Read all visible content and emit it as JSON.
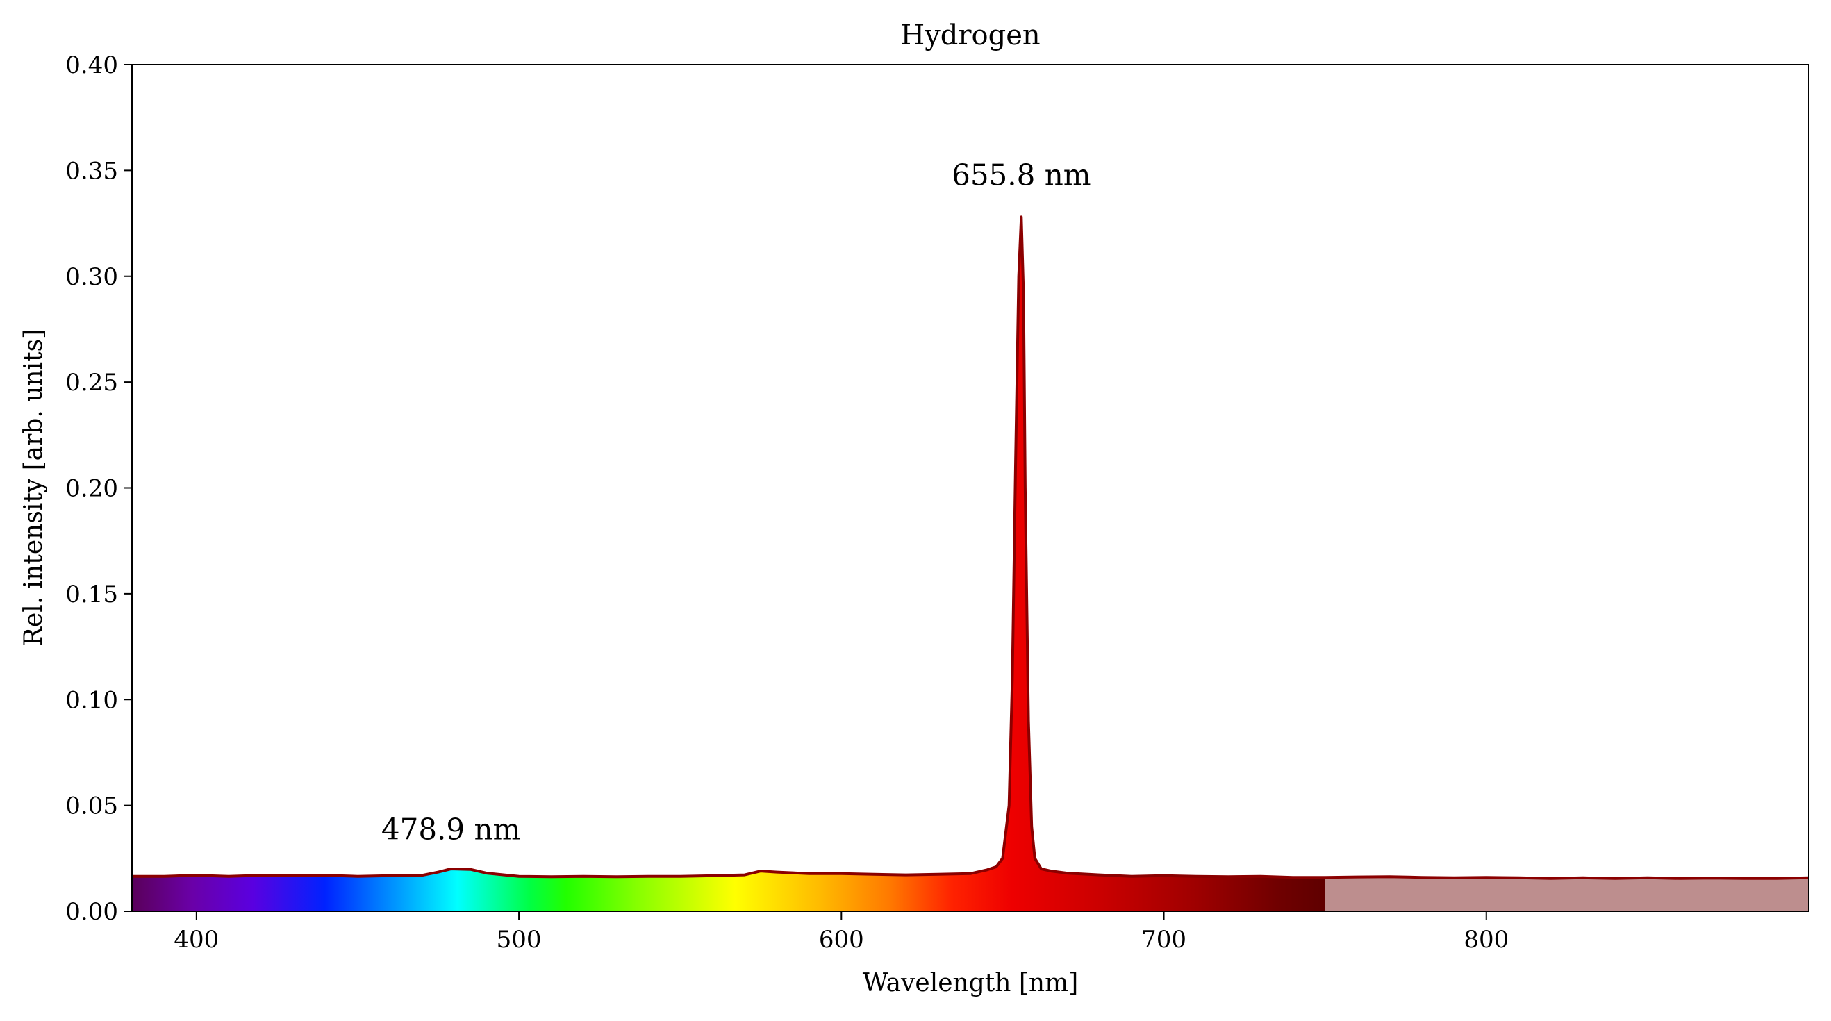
{
  "chart_data": {
    "type": "area",
    "title": "Hydrogen",
    "xlabel": "Wavelength [nm]",
    "ylabel": "Rel. intensity [arb. units]",
    "xlim": [
      380,
      900
    ],
    "ylim": [
      0,
      0.4
    ],
    "x_ticks": [
      400,
      500,
      600,
      700,
      800
    ],
    "x_tick_labels": [
      "400",
      "500",
      "600",
      "700",
      "800"
    ],
    "y_ticks": [
      0,
      0.05,
      0.1,
      0.15,
      0.2,
      0.25,
      0.3,
      0.35,
      0.4
    ],
    "y_tick_labels": [
      "0.00",
      "0.05",
      "0.10",
      "0.15",
      "0.20",
      "0.25",
      "0.30",
      "0.35",
      "0.40"
    ],
    "grid": false,
    "fill": "visible-spectrum gradient under the curve (380-750 nm), translucent dark red beyond 750 nm",
    "line_color": "#8b0000",
    "ir_fill_color": "#b17a7a",
    "series": [
      {
        "x": [
          380,
          390,
          400,
          410,
          420,
          430,
          440,
          450,
          460,
          470,
          475,
          478.9,
          485,
          490,
          500,
          510,
          520,
          530,
          540,
          550,
          560,
          570,
          575,
          580,
          590,
          600,
          610,
          620,
          630,
          640,
          645,
          648,
          650,
          652,
          653,
          654,
          655,
          655.8,
          656.5,
          657,
          658,
          659,
          660,
          662,
          665,
          670,
          680,
          690,
          700,
          710,
          720,
          730,
          740,
          750,
          760,
          770,
          780,
          790,
          800,
          810,
          820,
          830,
          840,
          850,
          860,
          870,
          880,
          890,
          900
        ],
        "y": [
          0.0165,
          0.0165,
          0.017,
          0.0165,
          0.017,
          0.0168,
          0.017,
          0.0165,
          0.0168,
          0.017,
          0.0185,
          0.02,
          0.0198,
          0.018,
          0.0165,
          0.0163,
          0.0165,
          0.0163,
          0.0165,
          0.0165,
          0.0168,
          0.0172,
          0.019,
          0.0185,
          0.0178,
          0.0178,
          0.0175,
          0.0172,
          0.0175,
          0.0178,
          0.0195,
          0.021,
          0.025,
          0.05,
          0.11,
          0.21,
          0.3,
          0.328,
          0.29,
          0.2,
          0.09,
          0.04,
          0.025,
          0.02,
          0.019,
          0.018,
          0.0172,
          0.0165,
          0.0168,
          0.0165,
          0.0163,
          0.0165,
          0.016,
          0.016,
          0.0162,
          0.0163,
          0.016,
          0.0158,
          0.016,
          0.0158,
          0.0155,
          0.0158,
          0.0155,
          0.0158,
          0.0155,
          0.0157,
          0.0155,
          0.0155,
          0.0158
        ]
      }
    ],
    "annotations": [
      {
        "text": "655.8 nm",
        "x": 655.8,
        "y": 0.343
      },
      {
        "text": "478.9 nm",
        "x": 478.9,
        "y": 0.034
      }
    ]
  }
}
